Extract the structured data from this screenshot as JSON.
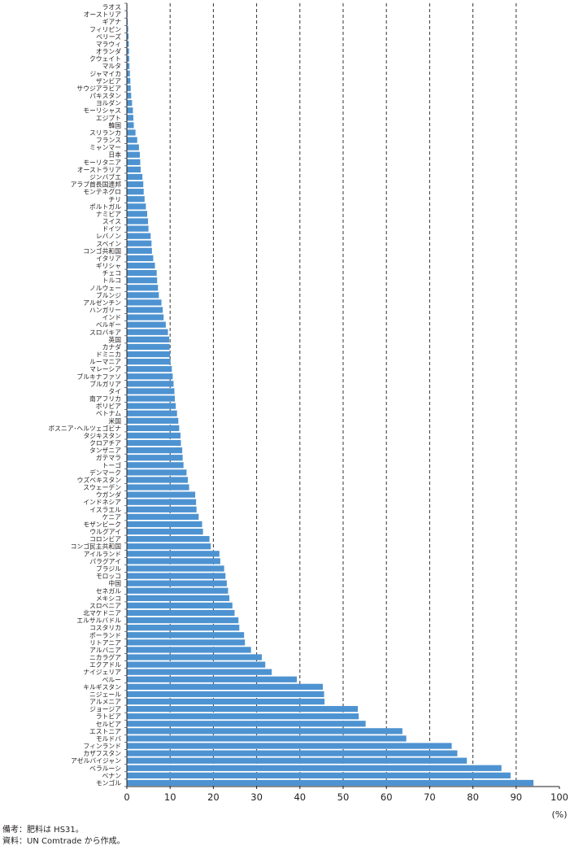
{
  "chart_data": {
    "type": "bar",
    "orientation": "horizontal",
    "xlim": [
      0,
      100
    ],
    "x_ticks": [
      0,
      10,
      20,
      30,
      40,
      50,
      60,
      70,
      80,
      90,
      100
    ],
    "x_unit": "(%)",
    "grid": "dashed vertical lines at 10–90",
    "bar_color": "#4e93d1",
    "categories": [
      "ラオス",
      "オーストリア",
      "ギアナ",
      "フィリピン",
      "ベリーズ",
      "マラウィ",
      "オランダ",
      "クウェイト",
      "マルタ",
      "ジャマイカ",
      "ザンビア",
      "サウジアラビア",
      "パキスタン",
      "ヨルダン",
      "モーリシャス",
      "エジプト",
      "韓国",
      "スリランカ",
      "フランス",
      "ミャンマー",
      "日本",
      "モーリタニア",
      "オーストラリア",
      "ジンバブエ",
      "アラブ首長国連邦",
      "モンテネグロ",
      "チリ",
      "ポルトガル",
      "ナミビア",
      "スイス",
      "ドイツ",
      "レバノン",
      "スペイン",
      "コンゴ共和国",
      "イタリア",
      "ギリシャ",
      "チェコ",
      "トルコ",
      "ノルウェー",
      "ブルンジ",
      "アルゼンチン",
      "ハンガリー",
      "インド",
      "ベルギー",
      "スロバキア",
      "英国",
      "カナダ",
      "ドミニカ",
      "ルーマニア",
      "マレーシア",
      "ブルキナファソ",
      "ブルガリア",
      "タイ",
      "南アフリカ",
      "ボリビア",
      "ベトナム",
      "米国",
      "ボスニア･ヘルツェゴビナ",
      "タジキスタン",
      "クロアチア",
      "タンザニア",
      "ガテマラ",
      "トーゴ",
      "デンマーク",
      "ウズベキスタン",
      "スウェーデン",
      "ウガンダ",
      "インドネシア",
      "イスラエル",
      "ケニア",
      "モザンビーク",
      "ウルグアイ",
      "コロンビア",
      "コンゴ民主共和国",
      "アイルランド",
      "パラグアイ",
      "ブラジル",
      "モロッコ",
      "中国",
      "セネガル",
      "メキシコ",
      "スロベニア",
      "北マケドニア",
      "エルサルバドル",
      "コスタリカ",
      "ポーランド",
      "リトアニア",
      "アルバニア",
      "ニカラグア",
      "エクアドル",
      "ナイジェリア",
      "ペルー",
      "キルギスタン",
      "ニジェール",
      "アルメニア",
      "ジョージア",
      "ラトビア",
      "セルビア",
      "エストニア",
      "モルドバ",
      "フィンランド",
      "カザフスタン",
      "アゼルバイジャン",
      "ベラルーシ",
      "ベナン",
      "モンゴル"
    ],
    "values": [
      0.1,
      0.15,
      0.2,
      0.3,
      0.4,
      0.45,
      0.5,
      0.55,
      0.6,
      0.7,
      0.8,
      0.9,
      1.0,
      1.2,
      1.4,
      1.5,
      1.6,
      2.0,
      2.4,
      2.8,
      3.0,
      3.1,
      3.2,
      3.6,
      3.8,
      3.9,
      4.1,
      4.4,
      4.7,
      4.9,
      5.0,
      5.5,
      5.7,
      5.8,
      6.1,
      6.5,
      6.9,
      7.0,
      7.2,
      7.4,
      8.0,
      8.3,
      8.5,
      9.0,
      9.5,
      9.8,
      9.9,
      10.0,
      10.1,
      10.4,
      10.6,
      10.8,
      11.0,
      11.1,
      11.3,
      11.6,
      11.9,
      12.1,
      12.4,
      12.5,
      12.8,
      12.9,
      13.1,
      13.8,
      14.1,
      14.4,
      15.8,
      16.0,
      16.1,
      16.6,
      17.4,
      17.6,
      19.1,
      19.4,
      21.4,
      21.6,
      22.5,
      22.8,
      23.1,
      23.4,
      23.7,
      24.4,
      24.9,
      25.8,
      26.0,
      27.1,
      27.3,
      28.7,
      31.2,
      32.0,
      33.5,
      39.3,
      45.3,
      45.6,
      45.7,
      53.4,
      53.6,
      55.2,
      63.7,
      64.6,
      75.1,
      76.4,
      78.6,
      86.6,
      88.7,
      94.0
    ]
  },
  "notes": {
    "line1": "備考：肥料は HS31。",
    "line2": "資料：UN Comtrade から作成。"
  }
}
